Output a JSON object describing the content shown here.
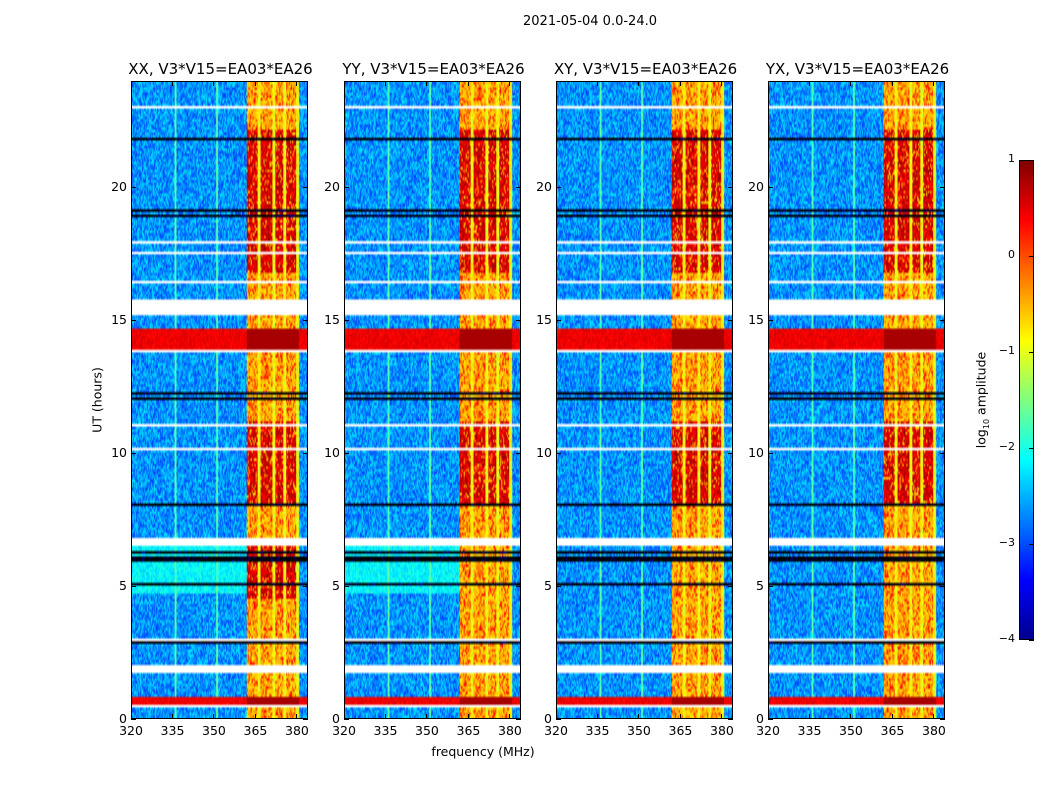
{
  "suptitle": "2021-05-04 0.0-24.0",
  "chart_data": {
    "type": "heatmap",
    "title": "2021-05-04 0.0-24.0",
    "xlabel": "frequency (MHz)",
    "ylabel": "UT (hours)",
    "xlim": [
      320,
      384
    ],
    "ylim": [
      0,
      24
    ],
    "xticks": [
      "320",
      "335",
      "350",
      "365",
      "380"
    ],
    "xtick_values": [
      320,
      335,
      350,
      365,
      380
    ],
    "yticks": [
      "0",
      "5",
      "10",
      "15",
      "20"
    ],
    "ytick_values": [
      0,
      5,
      10,
      15,
      20
    ],
    "panels": [
      {
        "title": "XX, V3*V15=EA03*EA26",
        "strong_rfi_hours": [
          [
            8,
            11.2
          ],
          [
            16.8,
            22.2
          ],
          [
            4.5,
            6.8
          ]
        ]
      },
      {
        "title": "YY, V3*V15=EA03*EA26",
        "strong_rfi_hours": [
          [
            8,
            11.2
          ],
          [
            16.8,
            22.2
          ]
        ]
      },
      {
        "title": "XY, V3*V15=EA03*EA26",
        "strong_rfi_hours": [
          [
            16.8,
            22.2
          ],
          [
            8,
            11.2
          ]
        ]
      },
      {
        "title": "YX, V3*V15=EA03*EA26",
        "strong_rfi_hours": [
          [
            16.8,
            22.2
          ],
          [
            8,
            11.2
          ]
        ]
      }
    ],
    "rfi_band_mhz": [
      362,
      381
    ],
    "rfi_subbands_mhz": [
      [
        362,
        366
      ],
      [
        367,
        371.5
      ],
      [
        372.5,
        375.5
      ],
      [
        376.5,
        380
      ]
    ],
    "flagged_hours": [
      [
        15.2,
        15.8
      ],
      [
        1.7,
        2.05
      ],
      [
        0.35,
        0.42
      ],
      [
        6.6,
        6.75
      ],
      [
        23.0,
        23.05
      ]
    ],
    "broadband_rfi_hours": [
      [
        13.95,
        14.7
      ],
      [
        0.5,
        0.75
      ]
    ],
    "colorbar": {
      "label_prefix": "log",
      "label_sub": "10",
      "label_suffix": " amplitude",
      "range": [
        -4,
        1
      ],
      "ticks": [
        "1",
        "0",
        "−1",
        "−2",
        "−3",
        "−4"
      ],
      "tick_values": [
        1,
        0,
        -1,
        -2,
        -3,
        -4
      ],
      "colormap": "jet"
    }
  }
}
